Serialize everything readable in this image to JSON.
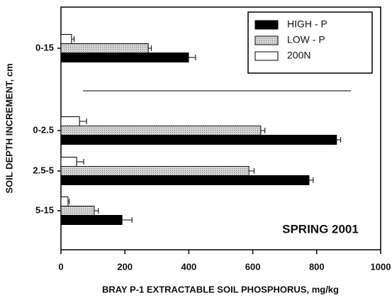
{
  "chart_data": {
    "type": "barh",
    "categories": [
      "0-15",
      "0-2.5",
      "2.5-5",
      "5-15"
    ],
    "series": [
      {
        "name": "HIGH - P",
        "color": "#000000",
        "values": [
          399,
          862,
          776,
          191
        ],
        "errors": [
          22,
          13,
          13,
          31
        ]
      },
      {
        "name": "LOW - P",
        "color": "#d4d4d4",
        "values": [
          273,
          625,
          588,
          104
        ],
        "errors": [
          10,
          13,
          16,
          13
        ]
      },
      {
        "name": "200N",
        "color": "#ffffff",
        "values": [
          33,
          58,
          49,
          22
        ],
        "errors": [
          8,
          22,
          22,
          4
        ]
      }
    ],
    "xlabel": "BRAY P-1 EXTRACTABLE SOIL PHOSPHORUS, mg/kg",
    "ylabel": "SOIL DEPTH INCREMENT, cm",
    "annotation": "SPRING 2001",
    "xlim": [
      0,
      1000
    ],
    "xticks": [
      0,
      200,
      400,
      600,
      800,
      1000
    ],
    "legend": "upper right"
  }
}
